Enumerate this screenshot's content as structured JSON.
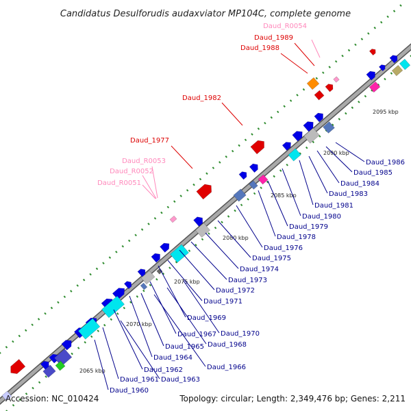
{
  "title": "Candidatus Desulforudis audaxviator MP104C, complete genome",
  "footer": {
    "accession": "Accession: NC_010424",
    "topology": "Topology: circular; Length: 2,349,476 bp; Genes: 2,211"
  },
  "colors": {
    "backbone": "#8f8f8f",
    "tick": "#2e8b2e",
    "gene_blue": "#0000e6",
    "gene_red": "#e60000",
    "rna_pink": "#ff99cc",
    "label_blue": "#00008b",
    "label_red": "#dd0000",
    "label_pink": "#ff88bb"
  },
  "kbp_labels": [
    "2065 kbp",
    "2070 kbp",
    "2075 kbp",
    "2080 kbp",
    "2085 kbp",
    "2090 kbp",
    "2095 kbp"
  ],
  "upper_labels": [
    {
      "text": "Daud_R0054",
      "color": "pink"
    },
    {
      "text": "Daud_1989",
      "color": "red"
    },
    {
      "text": "Daud_1988",
      "color": "red"
    },
    {
      "text": "Daud_1982",
      "color": "red"
    },
    {
      "text": "Daud_1977",
      "color": "red"
    },
    {
      "text": "Daud_R0053",
      "color": "pink"
    },
    {
      "text": "Daud_R0052",
      "color": "pink"
    },
    {
      "text": "Daud_R0051",
      "color": "pink"
    }
  ],
  "lower_labels": [
    "Daud_1986",
    "Daud_1985",
    "Daud_1984",
    "Daud_1983",
    "Daud_1981",
    "Daud_1980",
    "Daud_1979",
    "Daud_1978",
    "Daud_1976",
    "Daud_1975",
    "Daud_1974",
    "Daud_1973",
    "Daud_1972",
    "Daud_1971",
    "Daud_1969",
    "Daud_1970",
    "Daud_1967",
    "Daud_1968",
    "Daud_1965",
    "Daud_1964",
    "Daud_1966",
    "Daud_1962",
    "Daud_1963",
    "Daud_1961",
    "Daud_1960"
  ]
}
